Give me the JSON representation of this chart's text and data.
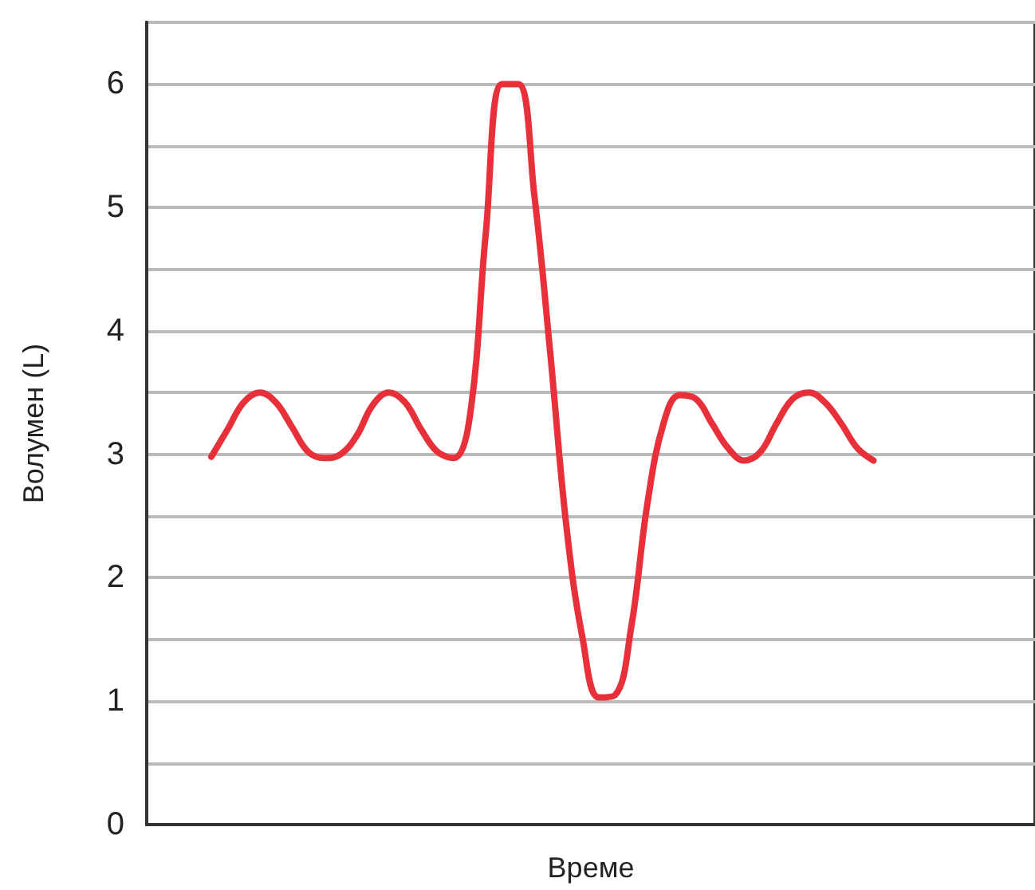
{
  "chart_data": {
    "type": "line",
    "xlabel": "Време",
    "ylabel": "Волумен (L)",
    "categories": [
      null,
      null,
      null,
      null,
      null,
      null,
      null,
      null,
      null,
      null,
      null,
      null,
      null,
      null,
      null,
      null,
      null,
      null,
      null,
      null,
      null,
      null,
      null,
      null,
      null,
      null,
      null,
      null,
      null,
      null,
      null,
      null,
      null,
      null,
      null,
      null,
      null,
      null,
      null,
      null,
      null,
      null,
      null,
      null,
      null,
      null,
      null,
      null,
      null,
      null,
      null,
      null,
      null,
      null,
      null,
      null
    ],
    "series": [
      {
        "color": "#e8303a",
        "values": [
          null,
          null,
          null,
          null,
          2.98,
          3.2,
          3.42,
          3.5,
          3.42,
          3.22,
          3.02,
          2.97,
          3.0,
          3.15,
          3.4,
          3.5,
          3.42,
          3.2,
          3.02,
          2.97,
          3.3,
          4.8,
          6.0,
          6.0,
          5.1,
          3.8,
          2.4,
          1.5,
          1.03,
          1.05,
          1.6,
          2.6,
          3.25,
          3.48,
          3.45,
          3.25,
          3.05,
          2.95,
          3.02,
          3.25,
          3.45,
          3.5,
          3.42,
          3.25,
          3.05,
          2.95,
          null,
          null,
          null,
          null,
          null,
          null,
          null,
          null,
          null,
          null
        ]
      }
    ],
    "ylim": [
      0,
      6.5
    ],
    "yticks": [
      0,
      {
        "value": 0.5,
        "label": null
      },
      1,
      {
        "value": 1.5,
        "label": null
      },
      2,
      {
        "value": 2.5,
        "label": null
      },
      3,
      {
        "value": 3.5,
        "label": null
      },
      4,
      {
        "value": 4.5,
        "label": null
      },
      5,
      {
        "value": 5.5,
        "label": null
      },
      6,
      {
        "value": 6.5,
        "label": null
      }
    ],
    "grid": "y",
    "marker": "none",
    "line_style": "solid",
    "tick_labels": "y"
  }
}
